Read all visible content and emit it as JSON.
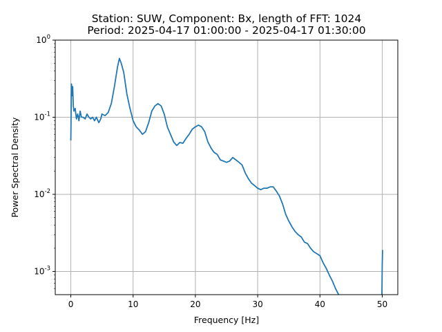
{
  "chart_data": {
    "type": "line",
    "title_line1": "Station: SUW, Component: Bx, length of FFT: 1024",
    "title_line2": "Period: 2025-04-17 01:00:00 - 2025-04-17 01:30:00",
    "xlabel": "Frequency [Hz]",
    "ylabel": "Power Spectral Density",
    "y_scale": "log",
    "xlim": [
      -2.5,
      52.5
    ],
    "ylim": [
      0.0005,
      1
    ],
    "x_ticks": [
      0,
      10,
      20,
      30,
      40,
      50
    ],
    "x_tick_labels": [
      "0",
      "10",
      "20",
      "30",
      "40",
      "50"
    ],
    "y_ticks": [
      0.001,
      0.01,
      0.1,
      1
    ],
    "y_tick_labels": [
      "10^-3",
      "10^-2",
      "10^-1",
      "10^0"
    ],
    "grid": true,
    "colors": {
      "series": "#1f77b4",
      "grid": "#b0b0b0"
    },
    "series": [
      {
        "values": [
          [
            0.0,
            0.05
          ],
          [
            0.1,
            0.27
          ],
          [
            0.2,
            0.19
          ],
          [
            0.3,
            0.25
          ],
          [
            0.4,
            0.14
          ],
          [
            0.5,
            0.12
          ],
          [
            0.7,
            0.13
          ],
          [
            0.9,
            0.095
          ],
          [
            1.1,
            0.11
          ],
          [
            1.3,
            0.09
          ],
          [
            1.5,
            0.12
          ],
          [
            1.7,
            0.1
          ],
          [
            2.0,
            0.1
          ],
          [
            2.3,
            0.095
          ],
          [
            2.6,
            0.11
          ],
          [
            2.9,
            0.1
          ],
          [
            3.2,
            0.095
          ],
          [
            3.5,
            0.1
          ],
          [
            3.8,
            0.09
          ],
          [
            4.1,
            0.1
          ],
          [
            4.5,
            0.085
          ],
          [
            4.8,
            0.095
          ],
          [
            5.0,
            0.11
          ],
          [
            5.5,
            0.105
          ],
          [
            6.0,
            0.115
          ],
          [
            6.5,
            0.15
          ],
          [
            7.0,
            0.25
          ],
          [
            7.5,
            0.45
          ],
          [
            7.8,
            0.58
          ],
          [
            8.1,
            0.5
          ],
          [
            8.5,
            0.38
          ],
          [
            9.0,
            0.2
          ],
          [
            9.5,
            0.13
          ],
          [
            10.0,
            0.09
          ],
          [
            10.5,
            0.075
          ],
          [
            11.0,
            0.068
          ],
          [
            11.5,
            0.06
          ],
          [
            12.0,
            0.065
          ],
          [
            12.5,
            0.085
          ],
          [
            13.0,
            0.12
          ],
          [
            13.5,
            0.14
          ],
          [
            14.0,
            0.15
          ],
          [
            14.5,
            0.14
          ],
          [
            15.0,
            0.11
          ],
          [
            15.5,
            0.075
          ],
          [
            16.0,
            0.06
          ],
          [
            16.5,
            0.048
          ],
          [
            17.0,
            0.043
          ],
          [
            17.5,
            0.047
          ],
          [
            18.0,
            0.046
          ],
          [
            18.5,
            0.053
          ],
          [
            19.0,
            0.06
          ],
          [
            19.5,
            0.07
          ],
          [
            20.0,
            0.075
          ],
          [
            20.5,
            0.079
          ],
          [
            21.0,
            0.075
          ],
          [
            21.5,
            0.065
          ],
          [
            22.0,
            0.048
          ],
          [
            22.5,
            0.04
          ],
          [
            23.0,
            0.035
          ],
          [
            23.5,
            0.033
          ],
          [
            24.0,
            0.028
          ],
          [
            24.5,
            0.027
          ],
          [
            25.0,
            0.026
          ],
          [
            25.5,
            0.027
          ],
          [
            26.0,
            0.03
          ],
          [
            26.5,
            0.028
          ],
          [
            27.0,
            0.026
          ],
          [
            27.5,
            0.024
          ],
          [
            28.0,
            0.019
          ],
          [
            28.5,
            0.016
          ],
          [
            29.0,
            0.014
          ],
          [
            29.5,
            0.013
          ],
          [
            30.0,
            0.012
          ],
          [
            30.5,
            0.0115
          ],
          [
            31.0,
            0.012
          ],
          [
            31.5,
            0.012
          ],
          [
            32.0,
            0.0125
          ],
          [
            32.5,
            0.0125
          ],
          [
            33.0,
            0.011
          ],
          [
            33.5,
            0.0095
          ],
          [
            34.0,
            0.0075
          ],
          [
            34.5,
            0.0055
          ],
          [
            35.0,
            0.0045
          ],
          [
            35.5,
            0.0038
          ],
          [
            36.0,
            0.0033
          ],
          [
            36.5,
            0.003
          ],
          [
            37.0,
            0.0028
          ],
          [
            37.5,
            0.0024
          ],
          [
            38.0,
            0.0023
          ],
          [
            38.5,
            0.002
          ],
          [
            39.0,
            0.0018
          ],
          [
            39.5,
            0.0017
          ],
          [
            40.0,
            0.0016
          ],
          [
            40.5,
            0.0013
          ],
          [
            41.0,
            0.0011
          ],
          [
            41.5,
            0.0009
          ],
          [
            42.0,
            0.00075
          ],
          [
            42.5,
            0.0006
          ],
          [
            43.0,
            0.0005
          ]
        ]
      },
      {
        "values": [
          [
            49.95,
            0.0005
          ],
          [
            50.0,
            0.0012
          ],
          [
            50.05,
            0.0019
          ]
        ]
      }
    ]
  }
}
